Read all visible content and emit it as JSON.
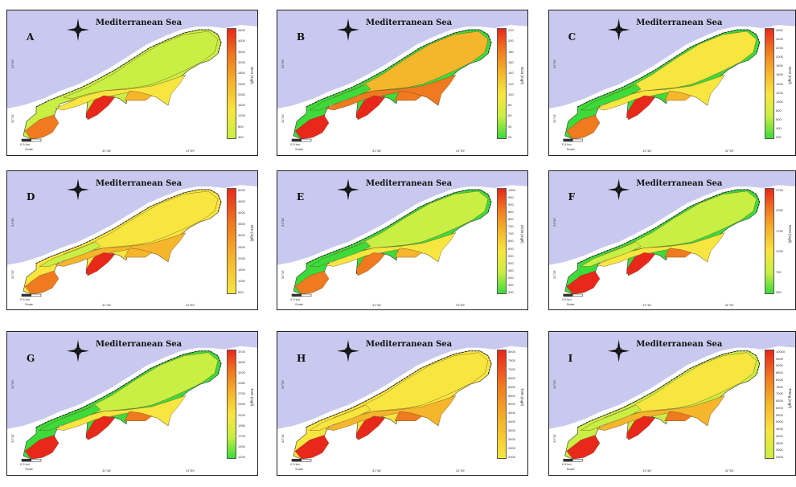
{
  "sea_label": "Mediterranean   Sea",
  "scale": {
    "left": "0",
    "right": "5 km",
    "unit": "Scale"
  },
  "coords": {
    "lon1": "31°48'",
    "lon2": "31°59'",
    "lat1": "31°30'",
    "lat2": "31°15'"
  },
  "colors": {
    "water": "#c9c8ee",
    "land_outline": "#333333",
    "high": "#e8281b",
    "mid_high": "#f07a1f",
    "mid": "#f5b62c",
    "mid_low": "#f8e640",
    "low": "#c9ee44",
    "min": "#3ddb3a"
  },
  "panels": [
    {
      "id": "A",
      "label": "A",
      "param": "NH4 (mg/l)",
      "ticks": [
        "4400",
        "4000",
        "3600",
        "3200",
        "2800",
        "2400",
        "2000",
        "1600",
        "1200",
        "800",
        "400"
      ],
      "scheme": "A"
    },
    {
      "id": "B",
      "label": "B",
      "param": "NO3 (mg/l)",
      "ticks": [
        "220",
        "200",
        "180",
        "160",
        "140",
        "120",
        "100",
        "80",
        "60",
        "40",
        "20"
      ],
      "scheme": "B"
    },
    {
      "id": "C",
      "label": "C",
      "param": "NO2 (mg/l)",
      "ticks": [
        "2600",
        "2400",
        "2200",
        "2000",
        "1800",
        "1600",
        "1400",
        "1200",
        "1000",
        "800",
        "600",
        "400",
        "200"
      ],
      "scheme": "C"
    },
    {
      "id": "D",
      "label": "D",
      "param": "DIN (mg/l)",
      "ticks": [
        "5000",
        "4500",
        "4000",
        "3500",
        "3000",
        "2500",
        "2000",
        "1500",
        "1000",
        "500"
      ],
      "scheme": "D"
    },
    {
      "id": "E",
      "label": "E",
      "param": "DON (mg/l)",
      "ticks": [
        "1000",
        "950",
        "900",
        "850",
        "800",
        "750",
        "700",
        "650",
        "600",
        "550",
        "500",
        "450",
        "400",
        "350",
        "300"
      ],
      "scheme": "E"
    },
    {
      "id": "F",
      "label": "F",
      "param": "PON (mg/l)",
      "ticks": [
        "2750",
        "2250",
        "1750",
        "1250",
        "750",
        "250"
      ],
      "scheme": "F"
    },
    {
      "id": "G",
      "label": "G",
      "param": "TON (mg/l)",
      "ticks": [
        "3700",
        "3450",
        "3200",
        "2950",
        "2700",
        "2450",
        "2200",
        "1950",
        "1700",
        "1450",
        "1200"
      ],
      "scheme": "G"
    },
    {
      "id": "H",
      "label": "H",
      "param": "TDN (mg/l)",
      "ticks": [
        "8000",
        "7500",
        "7000",
        "6500",
        "6000",
        "5500",
        "5000",
        "4500",
        "4000",
        "3500",
        "3000",
        "2500",
        "2000"
      ],
      "scheme": "H"
    },
    {
      "id": "I",
      "label": "I",
      "param": "TNmg (mg/l)",
      "ticks": [
        "10000",
        "9500",
        "9000",
        "8500",
        "8000",
        "7500",
        "7000",
        "6500",
        "6000",
        "5500",
        "5000",
        "4500",
        "4000",
        "3500",
        "3000",
        "2500"
      ],
      "scheme": "I"
    }
  ]
}
